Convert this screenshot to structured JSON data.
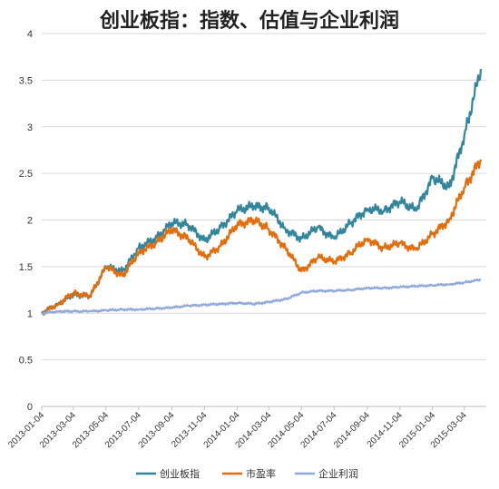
{
  "chart_data": {
    "type": "line",
    "title": "创业板指：指数、估值与企业利润",
    "xlabel": "",
    "ylabel": "",
    "ylim": [
      0,
      4
    ],
    "yticks": [
      "0",
      "0.5",
      "1",
      "1.5",
      "2",
      "2.5",
      "3",
      "3.5",
      "4"
    ],
    "xticks": [
      "2013-01-04",
      "2013-03-04",
      "2013-05-04",
      "2013-07-04",
      "2013-09-04",
      "2013-11-04",
      "2014-01-04",
      "2014-03-04",
      "2014-05-04",
      "2014-07-04",
      "2014-09-04",
      "2014-11-04",
      "2015-01-04",
      "2015-03-04"
    ],
    "grid": "horizontal",
    "legend_position": "bottom",
    "x": [
      "2013-01-04",
      "2013-02-04",
      "2013-03-04",
      "2013-04-04",
      "2013-05-04",
      "2013-06-04",
      "2013-07-04",
      "2013-08-04",
      "2013-09-04",
      "2013-10-04",
      "2013-11-04",
      "2013-12-04",
      "2014-01-04",
      "2014-02-04",
      "2014-03-04",
      "2014-04-04",
      "2014-05-04",
      "2014-06-04",
      "2014-07-04",
      "2014-08-04",
      "2014-09-04",
      "2014-10-04",
      "2014-11-04",
      "2014-12-04",
      "2015-01-04",
      "2015-02-04",
      "2015-03-04",
      "2015-04-04"
    ],
    "series": [
      {
        "name": "创业板指",
        "color": "#31859c",
        "values": [
          1.0,
          1.1,
          1.2,
          1.18,
          1.5,
          1.45,
          1.7,
          1.8,
          1.97,
          1.95,
          1.78,
          1.92,
          2.1,
          2.15,
          2.13,
          1.9,
          1.8,
          1.92,
          1.8,
          1.97,
          2.12,
          2.1,
          2.2,
          2.1,
          2.45,
          2.35,
          2.9,
          3.62
        ]
      },
      {
        "name": "市盈率",
        "color": "#e46c0a",
        "values": [
          1.0,
          1.1,
          1.22,
          1.18,
          1.5,
          1.4,
          1.65,
          1.75,
          1.9,
          1.8,
          1.6,
          1.72,
          1.95,
          2.0,
          1.9,
          1.7,
          1.45,
          1.6,
          1.55,
          1.65,
          1.8,
          1.7,
          1.75,
          1.68,
          1.85,
          2.0,
          2.35,
          2.65
        ]
      },
      {
        "name": "企业利润",
        "color": "#8ea9db",
        "values": [
          1.0,
          1.02,
          1.02,
          1.02,
          1.03,
          1.04,
          1.04,
          1.05,
          1.06,
          1.08,
          1.09,
          1.1,
          1.11,
          1.1,
          1.12,
          1.15,
          1.22,
          1.24,
          1.24,
          1.25,
          1.27,
          1.27,
          1.28,
          1.29,
          1.3,
          1.31,
          1.33,
          1.36
        ]
      }
    ]
  }
}
